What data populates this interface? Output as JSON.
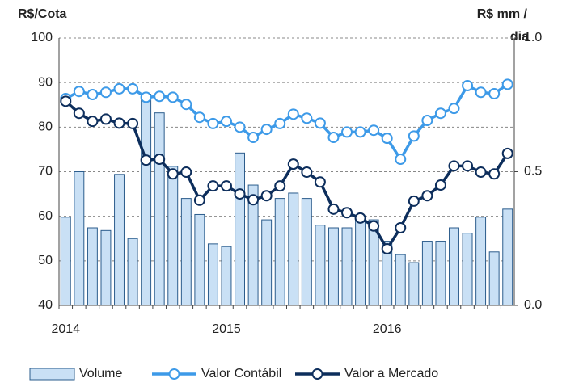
{
  "chart_data": {
    "type": "bar-line",
    "ylabel": "R$/Cota",
    "y2label": [
      "R$ mm /",
      "dia"
    ],
    "categories": [
      "2014",
      null,
      null,
      null,
      null,
      null,
      null,
      null,
      null,
      null,
      null,
      null,
      "2015",
      null,
      null,
      null,
      null,
      null,
      null,
      null,
      null,
      null,
      null,
      null,
      "2016",
      null,
      null,
      null,
      null,
      null,
      null,
      null,
      null,
      null
    ],
    "ylim": [
      40,
      100
    ],
    "yticks": [
      40,
      50,
      60,
      70,
      80,
      90,
      100
    ],
    "y2lim": [
      0,
      1
    ],
    "y2ticks": [
      {
        "value": 0,
        "label": "0.0"
      },
      0.5,
      {
        "value": 1,
        "label": "1.0"
      }
    ],
    "grid": true,
    "legend": "bottom",
    "series": [
      {
        "name": "Volume",
        "type": "bar",
        "axis": "y2",
        "color": "#c9e0f5",
        "edge": "#2b5c8c",
        "values": [
          0.33,
          0.5,
          0.29,
          0.28,
          0.49,
          0.25,
          0.79,
          0.72,
          0.52,
          0.4,
          0.34,
          0.23,
          0.22,
          0.57,
          0.45,
          0.32,
          0.4,
          0.42,
          0.4,
          0.3,
          0.29,
          0.29,
          0.33,
          0.32,
          0.24,
          0.19,
          0.16,
          0.24,
          0.24,
          0.29,
          0.27,
          0.33,
          0.2,
          0.36
        ]
      },
      {
        "name": "Valor Contábil",
        "type": "line",
        "axis": "y",
        "color": "#3d9ae8",
        "values": [
          86.4,
          88,
          87.3,
          87.8,
          88.6,
          88.6,
          86.7,
          86.9,
          86.7,
          85.1,
          82.2,
          80.8,
          81.3,
          80,
          77.7,
          79.5,
          80.8,
          82.9,
          82,
          80.9,
          77.7,
          78.9,
          78.9,
          79.3,
          77.5,
          72.8,
          78,
          81.5,
          83.1,
          84.2,
          89.3,
          87.8,
          87.5,
          89.6
        ]
      },
      {
        "name": "Valor a Mercado",
        "type": "line",
        "axis": "y",
        "color": "#0d2e5c",
        "values": [
          85.8,
          83.1,
          81.3,
          81.8,
          80.9,
          80.8,
          72.6,
          72.8,
          69.5,
          69.9,
          63.6,
          66.8,
          66.8,
          65,
          63.7,
          64.6,
          66.8,
          71.7,
          69.9,
          67.7,
          61.6,
          60.8,
          59.6,
          57.8,
          52.7,
          57.4,
          63.4,
          64.6,
          67,
          71.3,
          71.3,
          69.9,
          69.5,
          74.1
        ]
      }
    ]
  }
}
